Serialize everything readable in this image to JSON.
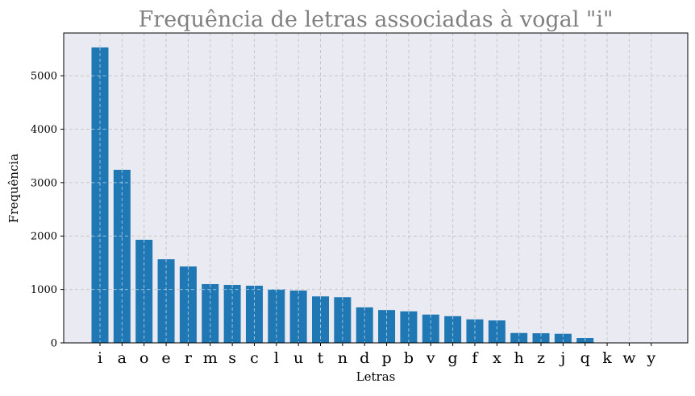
{
  "chart_data": {
    "type": "bar",
    "title": "Frequência de letras associadas à vogal \"i\"",
    "xlabel": "Letras",
    "ylabel": "Frequência",
    "categories": [
      "i",
      "a",
      "o",
      "e",
      "r",
      "m",
      "s",
      "c",
      "l",
      "u",
      "t",
      "n",
      "d",
      "p",
      "b",
      "v",
      "g",
      "f",
      "x",
      "h",
      "z",
      "j",
      "q",
      "k",
      "w",
      "y"
    ],
    "values": [
      5530,
      3240,
      1930,
      1565,
      1430,
      1100,
      1085,
      1070,
      1000,
      980,
      870,
      855,
      665,
      615,
      590,
      530,
      500,
      440,
      420,
      185,
      180,
      170,
      90,
      0,
      0,
      0
    ],
    "ylim": [
      0,
      5800
    ],
    "yticks": [
      0,
      1000,
      2000,
      3000,
      4000,
      5000
    ],
    "grid": true,
    "colors": {
      "bar": "#1f77b4",
      "plot_background": "#eaeaf2",
      "grid": "#c8c8c8",
      "title": "#808080"
    }
  }
}
